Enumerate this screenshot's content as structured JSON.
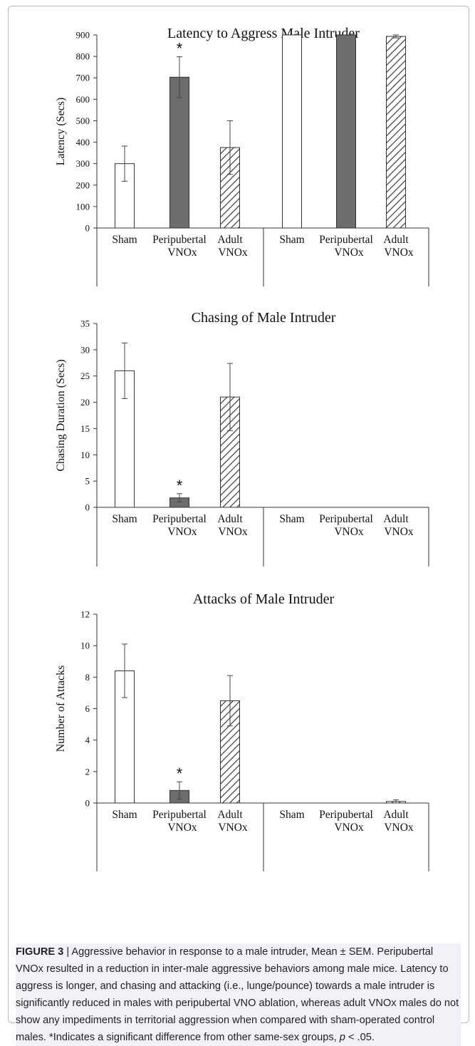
{
  "figure": {
    "caption_label": "FIGURE 3",
    "caption_separator": " | ",
    "caption_text_1": "Aggressive behavior in response to a male intruder, Mean ± SEM. Peripubertal VNOx resulted in a reduction in inter-male aggressive behaviors among male mice. Latency to aggress is longer, and chasing and attacking (i.e., lunge/pounce) towards a male intruder is significantly reduced in males with peripubertal VNO ablation, whereas adult VNOx males do not show any impediments in territorial aggression when compared with sham-operated control males. *Indicates a significant difference from other same-sex groups, ",
    "caption_p": "p",
    "caption_text_2": " < .05."
  },
  "chart_data": [
    {
      "type": "bar",
      "title": "Latency to Aggress Male Intruder",
      "ylabel": "Latency (Secs)",
      "xlabel": "",
      "ylim": [
        0,
        900
      ],
      "yticks": [
        0,
        100,
        200,
        300,
        400,
        500,
        600,
        700,
        800,
        900
      ],
      "categories": [
        {
          "line1": "Sham",
          "line2": ""
        },
        {
          "line1": "Peripubertal",
          "line2": "VNOx"
        },
        {
          "line1": "Adult",
          "line2": "VNOx"
        },
        {
          "line1": "Sham",
          "line2": ""
        },
        {
          "line1": "Peripubertal",
          "line2": "VNOx"
        },
        {
          "line1": "Adult",
          "line2": "VNOx"
        }
      ],
      "values": [
        300,
        703,
        375,
        900,
        900,
        893
      ],
      "errors": [
        82,
        95,
        125,
        0,
        0,
        7
      ],
      "styles": [
        "open",
        "filled",
        "hatched",
        "open",
        "filled",
        "hatched"
      ],
      "significance": [
        false,
        true,
        false,
        false,
        false,
        false
      ],
      "significance_marker": "*",
      "grid": false
    },
    {
      "type": "bar",
      "title": "Chasing of Male Intruder",
      "ylabel": "Chasing Duration (Secs)",
      "xlabel": "",
      "ylim": [
        0,
        35
      ],
      "yticks": [
        0,
        5,
        10,
        15,
        20,
        25,
        30,
        35
      ],
      "categories": [
        {
          "line1": "Sham",
          "line2": ""
        },
        {
          "line1": "Peripubertal",
          "line2": "VNOx"
        },
        {
          "line1": "Adult",
          "line2": "VNOx"
        },
        {
          "line1": "Sham",
          "line2": ""
        },
        {
          "line1": "Peripubertal",
          "line2": "VNOx"
        },
        {
          "line1": "Adult",
          "line2": "VNOx"
        }
      ],
      "values": [
        26,
        1.8,
        21,
        0,
        0,
        0
      ],
      "errors": [
        5.3,
        0.8,
        6.4,
        0,
        0,
        0
      ],
      "styles": [
        "open",
        "filled",
        "hatched",
        "open",
        "filled",
        "hatched"
      ],
      "significance": [
        false,
        true,
        false,
        false,
        false,
        false
      ],
      "significance_marker": "*",
      "grid": false
    },
    {
      "type": "bar",
      "title": "Attacks of Male Intruder",
      "ylabel": "Number of Attacks",
      "xlabel": "",
      "ylim": [
        0,
        12
      ],
      "yticks": [
        0,
        2,
        4,
        6,
        8,
        10,
        12
      ],
      "categories": [
        {
          "line1": "Sham",
          "line2": ""
        },
        {
          "line1": "Peripubertal",
          "line2": "VNOx"
        },
        {
          "line1": "Adult",
          "line2": "VNOx"
        },
        {
          "line1": "Sham",
          "line2": ""
        },
        {
          "line1": "Peripubertal",
          "line2": "VNOx"
        },
        {
          "line1": "Adult",
          "line2": "VNOx"
        }
      ],
      "values": [
        8.4,
        0.8,
        6.5,
        0,
        0,
        0.1
      ],
      "errors": [
        1.7,
        0.55,
        1.6,
        0,
        0,
        0.1
      ],
      "styles": [
        "open",
        "filled",
        "hatched",
        "open",
        "filled",
        "hatched"
      ],
      "significance": [
        false,
        true,
        false,
        false,
        false,
        false
      ],
      "significance_marker": "*",
      "grid": false
    }
  ]
}
